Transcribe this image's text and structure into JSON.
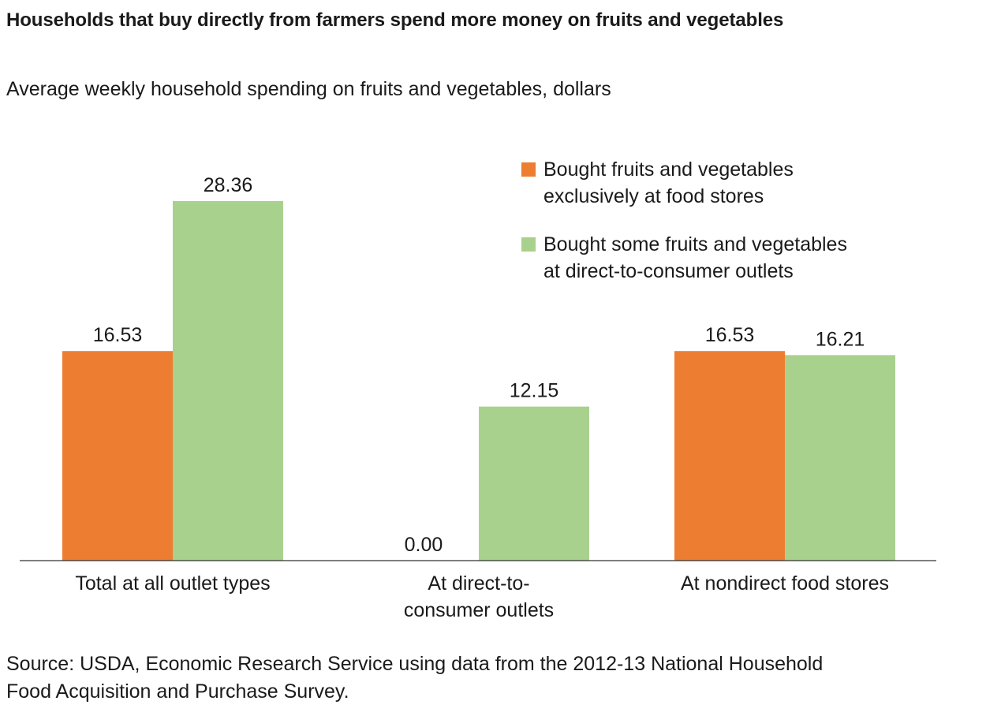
{
  "title": "Households that buy directly from farmers spend more money on fruits and vegetables",
  "subtitle": "Average weekly household spending on fruits and vegetables, dollars",
  "source": "Source: USDA, Economic Research Service using data from the 2012-13 National Household\nFood Acquisition and Purchase Survey.",
  "chart_data": {
    "type": "bar",
    "title": "Households that buy directly from farmers spend more money on fruits and vegetables",
    "subtitle": "Average weekly household spending on fruits and vegetables, dollars",
    "categories": [
      "Total at all outlet types",
      "At direct-to-\nconsumer outlets",
      "At nondirect food stores"
    ],
    "series": [
      {
        "name": "Bought fruits and vegetables\nexclusively at food stores",
        "color": "#ED7D31",
        "values": [
          16.53,
          0.0,
          16.53
        ],
        "labels": [
          "16.53",
          "0.00",
          "16.53"
        ]
      },
      {
        "name": "Bought some fruits and vegetables\nat direct-to-consumer outlets",
        "color": "#A9D18E",
        "values": [
          28.36,
          12.15,
          16.21
        ],
        "labels": [
          "28.36",
          "12.15",
          "16.21"
        ]
      }
    ],
    "ylim": [
      0,
      31
    ],
    "grid": false,
    "legend_position": "top-right",
    "data_labels": true
  }
}
